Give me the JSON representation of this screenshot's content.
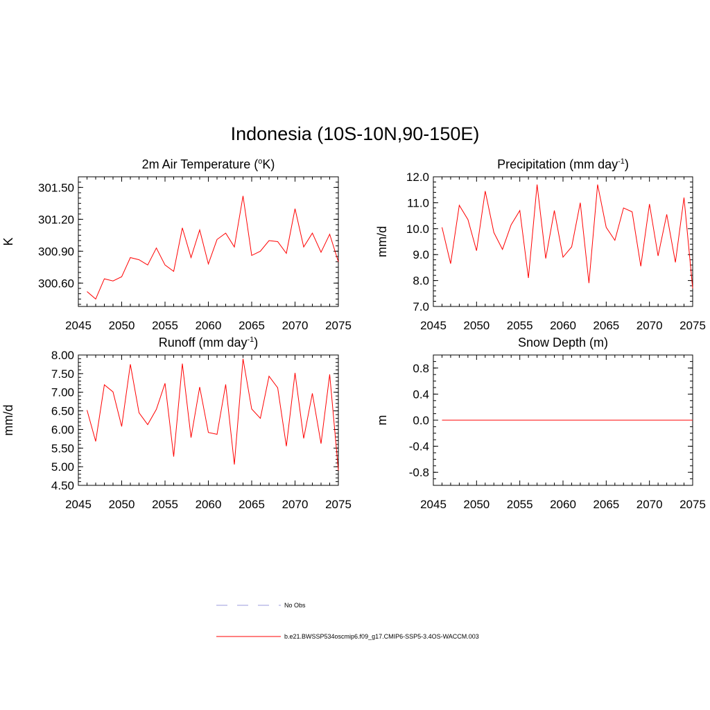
{
  "title": "Indonesia (10S-10N,90-150E)",
  "line_color": "#ff0000",
  "chart_data": [
    {
      "type": "line",
      "title_parts": [
        "2m Air Temperature (",
        "o",
        "K)"
      ],
      "ylabel": "K",
      "xlim": [
        2045,
        2075
      ],
      "ylim": [
        300.38,
        301.6
      ],
      "xticks": [
        2045,
        2050,
        2055,
        2060,
        2065,
        2070,
        2075
      ],
      "yticks": [
        300.6,
        300.9,
        301.2,
        301.5
      ],
      "ytick_labels": [
        "300.60",
        "300.90",
        "301.20",
        "301.50"
      ],
      "yminor": 0.05,
      "x": [
        2046,
        2047,
        2048,
        2049,
        2050,
        2051,
        2052,
        2053,
        2054,
        2055,
        2056,
        2057,
        2058,
        2059,
        2060,
        2061,
        2062,
        2063,
        2064,
        2065,
        2066,
        2067,
        2068,
        2069,
        2070,
        2071,
        2072,
        2073,
        2074,
        2075
      ],
      "values": [
        300.52,
        300.45,
        300.64,
        300.62,
        300.66,
        300.84,
        300.82,
        300.77,
        300.93,
        300.77,
        300.71,
        301.12,
        300.84,
        301.1,
        300.78,
        301.01,
        301.07,
        300.94,
        301.42,
        300.86,
        300.9,
        301.0,
        300.99,
        300.88,
        301.3,
        300.94,
        301.07,
        300.89,
        301.06,
        300.8
      ]
    },
    {
      "type": "line",
      "title_parts": [
        "Precipitation (mm day",
        "-1",
        ")"
      ],
      "ylabel": "mm/d",
      "xlim": [
        2045,
        2075
      ],
      "ylim": [
        7.0,
        12.0
      ],
      "xticks": [
        2045,
        2050,
        2055,
        2060,
        2065,
        2070,
        2075
      ],
      "yticks": [
        7,
        8,
        9,
        10,
        11,
        12
      ],
      "ytick_labels": [
        "7.0",
        "8.0",
        "9.0",
        "10.0",
        "11.0",
        "12.0"
      ],
      "yminor": 0.2,
      "x": [
        2046,
        2047,
        2048,
        2049,
        2050,
        2051,
        2052,
        2053,
        2054,
        2055,
        2056,
        2057,
        2058,
        2059,
        2060,
        2061,
        2062,
        2063,
        2064,
        2065,
        2066,
        2067,
        2068,
        2069,
        2070,
        2071,
        2072,
        2073,
        2074,
        2075
      ],
      "values": [
        10.05,
        8.65,
        10.9,
        10.35,
        9.15,
        11.45,
        9.85,
        9.2,
        10.15,
        10.7,
        8.1,
        11.7,
        8.85,
        10.7,
        8.9,
        9.3,
        11.0,
        7.9,
        11.7,
        10.05,
        9.55,
        10.8,
        10.65,
        8.55,
        10.95,
        8.95,
        10.55,
        8.7,
        11.2,
        7.7
      ]
    },
    {
      "type": "line",
      "title_parts": [
        "Runoff (mm day",
        "-1",
        ")"
      ],
      "ylabel": "mm/d",
      "xlim": [
        2045,
        2075
      ],
      "ylim": [
        4.5,
        8.0
      ],
      "xticks": [
        2045,
        2050,
        2055,
        2060,
        2065,
        2070,
        2075
      ],
      "yticks": [
        4.5,
        5.0,
        5.5,
        6.0,
        6.5,
        7.0,
        7.5,
        8.0
      ],
      "ytick_labels": [
        "4.50",
        "5.00",
        "5.50",
        "6.00",
        "6.50",
        "7.00",
        "7.50",
        "8.00"
      ],
      "yminor": 0.1,
      "x": [
        2046,
        2047,
        2048,
        2049,
        2050,
        2051,
        2052,
        2053,
        2054,
        2055,
        2056,
        2057,
        2058,
        2059,
        2060,
        2061,
        2062,
        2063,
        2064,
        2065,
        2066,
        2067,
        2068,
        2069,
        2070,
        2071,
        2072,
        2073,
        2074,
        2075
      ],
      "values": [
        6.52,
        5.68,
        7.2,
        7.01,
        6.08,
        7.75,
        6.45,
        6.13,
        6.54,
        7.24,
        5.27,
        7.77,
        5.78,
        7.14,
        5.92,
        5.87,
        7.21,
        5.06,
        7.9,
        6.55,
        6.3,
        7.43,
        7.12,
        5.55,
        7.52,
        5.76,
        6.97,
        5.62,
        7.48,
        4.9
      ]
    },
    {
      "type": "line",
      "title_parts": [
        "Snow Depth (m)"
      ],
      "ylabel": "m",
      "xlim": [
        2045,
        2075
      ],
      "ylim": [
        -1.0,
        1.0
      ],
      "xticks": [
        2045,
        2050,
        2055,
        2060,
        2065,
        2070,
        2075
      ],
      "yticks": [
        -0.8,
        -0.4,
        0.0,
        0.4,
        0.8
      ],
      "ytick_labels": [
        "-0.8",
        "-0.4",
        "0.0",
        "0.4",
        "0.8"
      ],
      "yminor": 0.1,
      "x": [
        2046,
        2047,
        2048,
        2049,
        2050,
        2051,
        2052,
        2053,
        2054,
        2055,
        2056,
        2057,
        2058,
        2059,
        2060,
        2061,
        2062,
        2063,
        2064,
        2065,
        2066,
        2067,
        2068,
        2069,
        2070,
        2071,
        2072,
        2073,
        2074,
        2075
      ],
      "values": [
        0,
        0,
        0,
        0,
        0,
        0,
        0,
        0,
        0,
        0,
        0,
        0,
        0,
        0,
        0,
        0,
        0,
        0,
        0,
        0,
        0,
        0,
        0,
        0,
        0,
        0,
        0,
        0,
        0,
        0
      ]
    }
  ],
  "legend": {
    "obs_label": "No Obs",
    "obs_color": "#9999dd",
    "model_label": "b.e21.BWSSP534oscmip6.f09_g17.CMIP6-SSP5-3.4OS-WACCM.003",
    "model_color": "#ff0000"
  }
}
